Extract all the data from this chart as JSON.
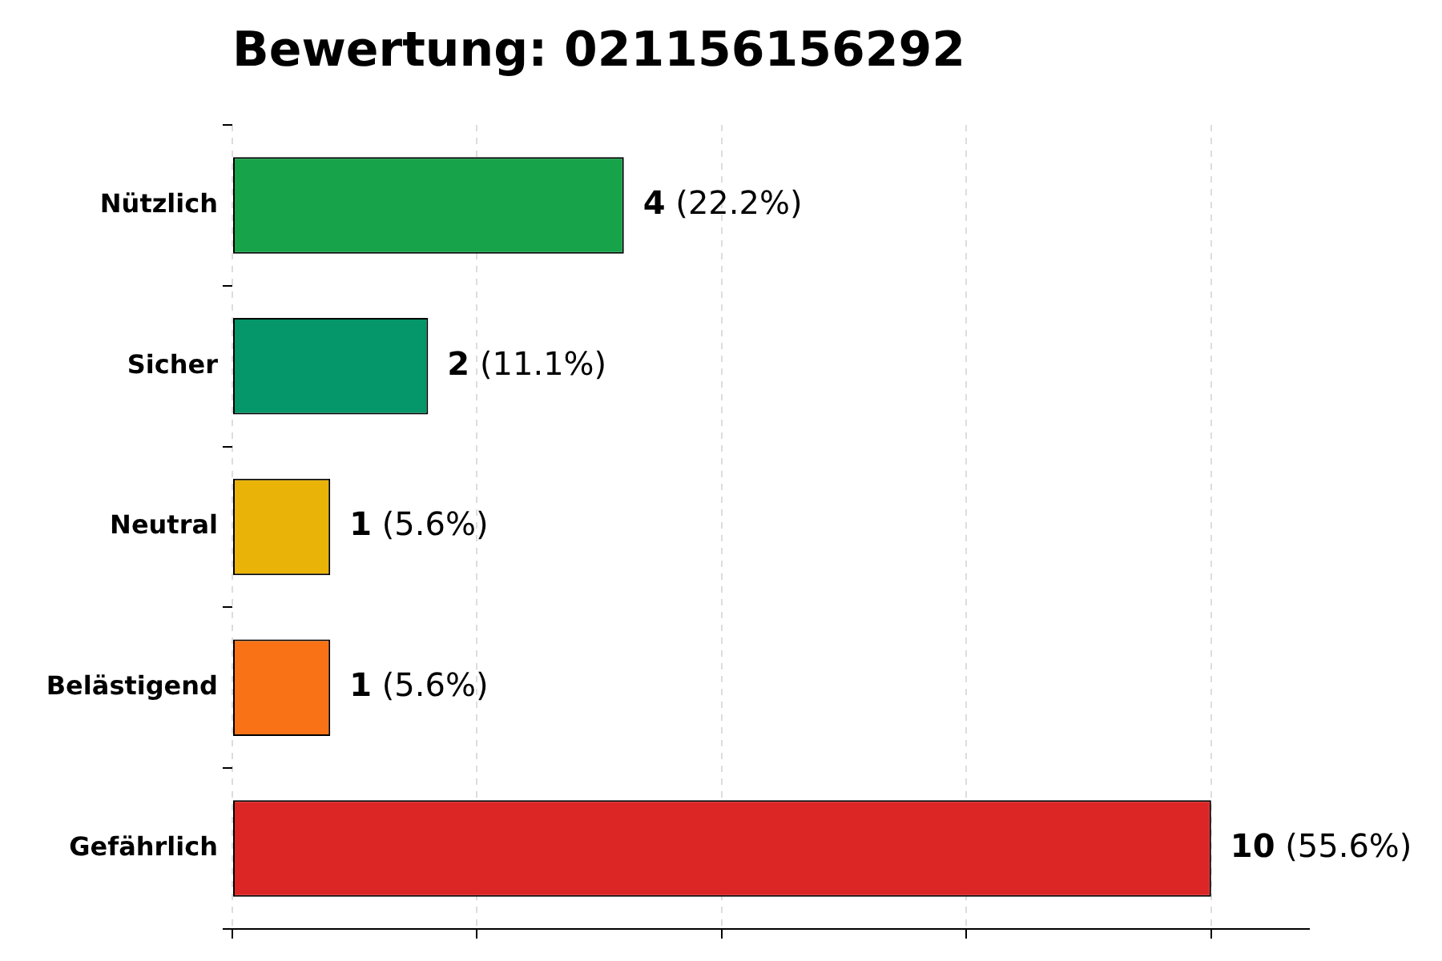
{
  "chart_data": {
    "type": "bar",
    "orientation": "horizontal",
    "title": "Bewertung: 021156156292",
    "categories": [
      "Nützlich",
      "Sicher",
      "Neutral",
      "Belästigend",
      "Gefährlich"
    ],
    "values": [
      4,
      2,
      1,
      1,
      10
    ],
    "colors": [
      "#16a34a",
      "#059669",
      "#eab308",
      "#f97316",
      "#dc2626"
    ],
    "value_labels": [
      "4 (22.2%)",
      "2 (11.1%)",
      "1 (5.6%)",
      "1 (5.6%)",
      "10 (55.6%)"
    ],
    "xlim": [
      0,
      11
    ],
    "xticks": [
      {
        "value": 0,
        "label": null
      },
      {
        "value": 2.5,
        "label": null
      },
      {
        "value": 5,
        "label": null
      },
      {
        "value": 7.5,
        "label": null
      },
      {
        "value": 10,
        "label": null
      }
    ],
    "tick_labels": "y",
    "grid": "x",
    "legend": false
  }
}
